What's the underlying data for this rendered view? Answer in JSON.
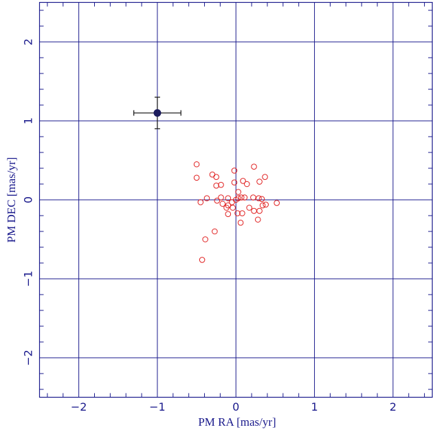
{
  "chart_data": {
    "type": "scatter",
    "x_label": "PM RA [mas/yr]",
    "y_label": "PM DEC [mas/yr]",
    "xlim": [
      -2.5,
      2.5
    ],
    "ylim": [
      -2.5,
      2.5
    ],
    "xticks": [
      {
        "value": -2,
        "label": "−2"
      },
      {
        "value": -1,
        "label": "−1"
      },
      0,
      1,
      2
    ],
    "yticks": [
      {
        "value": -2,
        "label": "−2"
      },
      {
        "value": -1,
        "label": "−1"
      },
      0,
      1,
      2
    ],
    "xminorticks": [
      -2.4,
      -2.2,
      -1.8,
      -1.6,
      -1.4,
      -1.2,
      -0.8,
      -0.6,
      -0.4,
      -0.2,
      0.2,
      0.4,
      0.6,
      0.8,
      1.2,
      1.4,
      1.6,
      1.8,
      2.2,
      2.4
    ],
    "yminorticks": [
      -2.4,
      -2.2,
      -1.8,
      -1.6,
      -1.4,
      -1.2,
      -0.8,
      -0.6,
      -0.4,
      -0.2,
      0.2,
      0.4,
      0.6,
      0.8,
      1.2,
      1.4,
      1.6,
      1.8,
      2.2,
      2.4
    ],
    "grid": true,
    "axis_color": "#1a1a8c",
    "series": [
      {
        "color": "#e02020",
        "marker": "open-circle",
        "x": [
          -0.5,
          -0.5,
          -0.3,
          -0.25,
          -0.25,
          -0.19,
          -0.02,
          -0.02,
          0.23,
          0.09,
          0.14,
          0.37,
          0.3,
          0.03,
          -0.45,
          -0.37,
          -0.24,
          -0.19,
          -0.17,
          -0.12,
          -0.1,
          -0.1,
          -0.1,
          -0.04,
          0.0,
          0.03,
          0.07,
          0.11,
          0.02,
          0.08,
          0.06,
          0.17,
          0.22,
          0.23,
          0.28,
          0.29,
          0.33,
          0.34,
          0.3,
          0.38,
          0.52,
          -0.39,
          -0.27,
          -0.43,
          -0.05
        ],
        "values": [
          0.45,
          0.28,
          0.32,
          0.29,
          0.18,
          0.19,
          0.37,
          0.22,
          0.42,
          0.24,
          0.2,
          0.29,
          0.23,
          0.1,
          -0.03,
          0.02,
          -0.01,
          0.03,
          -0.05,
          -0.1,
          0.02,
          -0.07,
          -0.18,
          -0.1,
          0.0,
          0.02,
          0.03,
          0.03,
          -0.17,
          -0.17,
          -0.29,
          -0.1,
          0.03,
          -0.14,
          -0.25,
          0.02,
          0.01,
          -0.07,
          -0.14,
          -0.06,
          -0.04,
          -0.5,
          -0.4,
          -0.76,
          -0.03
        ]
      },
      {
        "color": "#1c1c5c",
        "marker": "filled-circle-errorbar",
        "x": [
          -1.0
        ],
        "values": [
          1.1
        ],
        "xerr": [
          0.3
        ],
        "yerr": [
          0.2
        ]
      }
    ]
  }
}
